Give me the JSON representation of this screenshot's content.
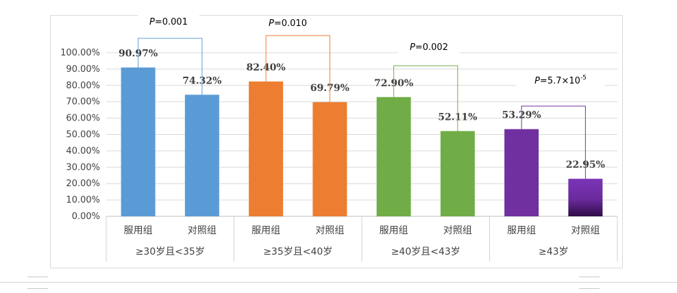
{
  "chart_data": {
    "type": "bar",
    "y_ticks": [
      "0.00%",
      "10.00%",
      "20.00%",
      "30.00%",
      "40.00%",
      "50.00%",
      "60.00%",
      "70.00%",
      "80.00%",
      "90.00%",
      "100.00%"
    ],
    "ylim": [
      0,
      1.0
    ],
    "grid": true,
    "groups": [
      {
        "label": "≥30岁且<35岁",
        "color": "#5b9bd5",
        "bars": [
          {
            "category": "服用组",
            "value": 0.9097,
            "label": "90.97%"
          },
          {
            "category": "对照组",
            "value": 0.7432,
            "label": "74.32%"
          }
        ],
        "p_value": {
          "prefix": "P",
          "text": "=0.001"
        }
      },
      {
        "label": "≥35岁且<40岁",
        "color": "#ed7d31",
        "bars": [
          {
            "category": "服用组",
            "value": 0.824,
            "label": "82.40%"
          },
          {
            "category": "对照组",
            "value": 0.6979,
            "label": "69.79%"
          }
        ],
        "p_value": {
          "prefix": "P",
          "text": "=0.010"
        }
      },
      {
        "label": "≥40岁且<43岁",
        "color": "#70ad47",
        "bars": [
          {
            "category": "服用组",
            "value": 0.729,
            "label": "72.90%"
          },
          {
            "category": "对照组",
            "value": 0.5211,
            "label": "52.11%"
          }
        ],
        "p_value": {
          "prefix": "P",
          "text": "=0.002"
        }
      },
      {
        "label": "≥43岁",
        "color": "#7030a0",
        "bars": [
          {
            "category": "服用组",
            "value": 0.5329,
            "label": "53.29%"
          },
          {
            "category": "对照组",
            "value": 0.2295,
            "label": "22.95%"
          }
        ],
        "p_value": {
          "prefix": "P",
          "text": "=5.7×10",
          "sup": "-5"
        }
      }
    ]
  }
}
